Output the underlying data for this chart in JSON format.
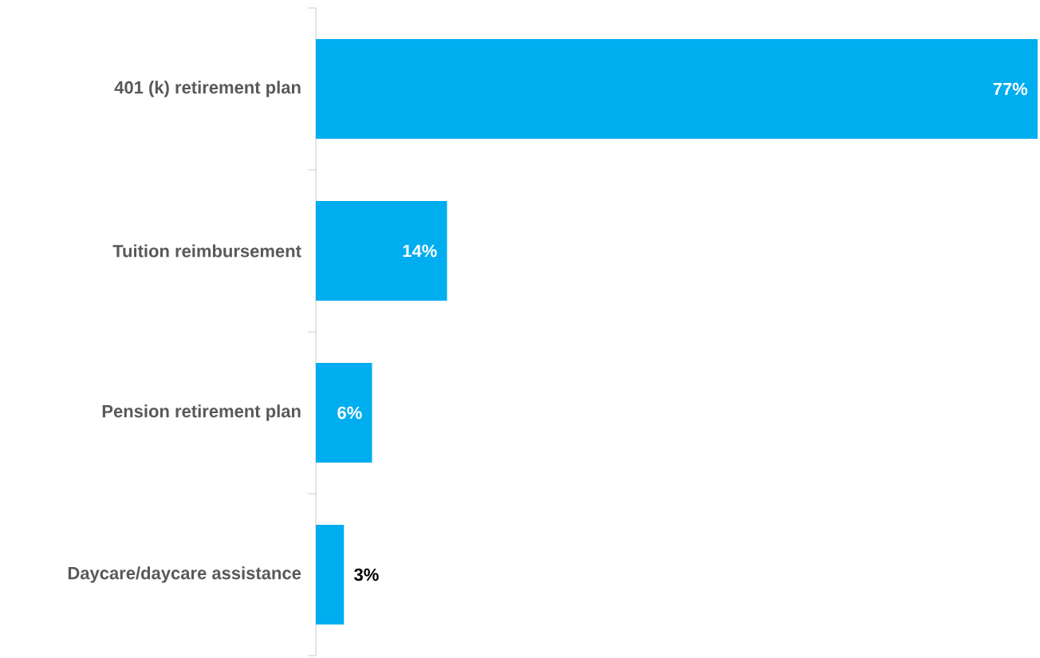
{
  "chart_data": {
    "type": "bar",
    "orientation": "horizontal",
    "categories": [
      "401 (k) retirement plan",
      "Tuition reimbursement",
      "Pension retirement plan",
      "Daycare/daycare assistance"
    ],
    "values": [
      77,
      14,
      6,
      3
    ],
    "value_labels": [
      "77%",
      "14%",
      "6%",
      "3%"
    ],
    "color": "#00adef"
  }
}
